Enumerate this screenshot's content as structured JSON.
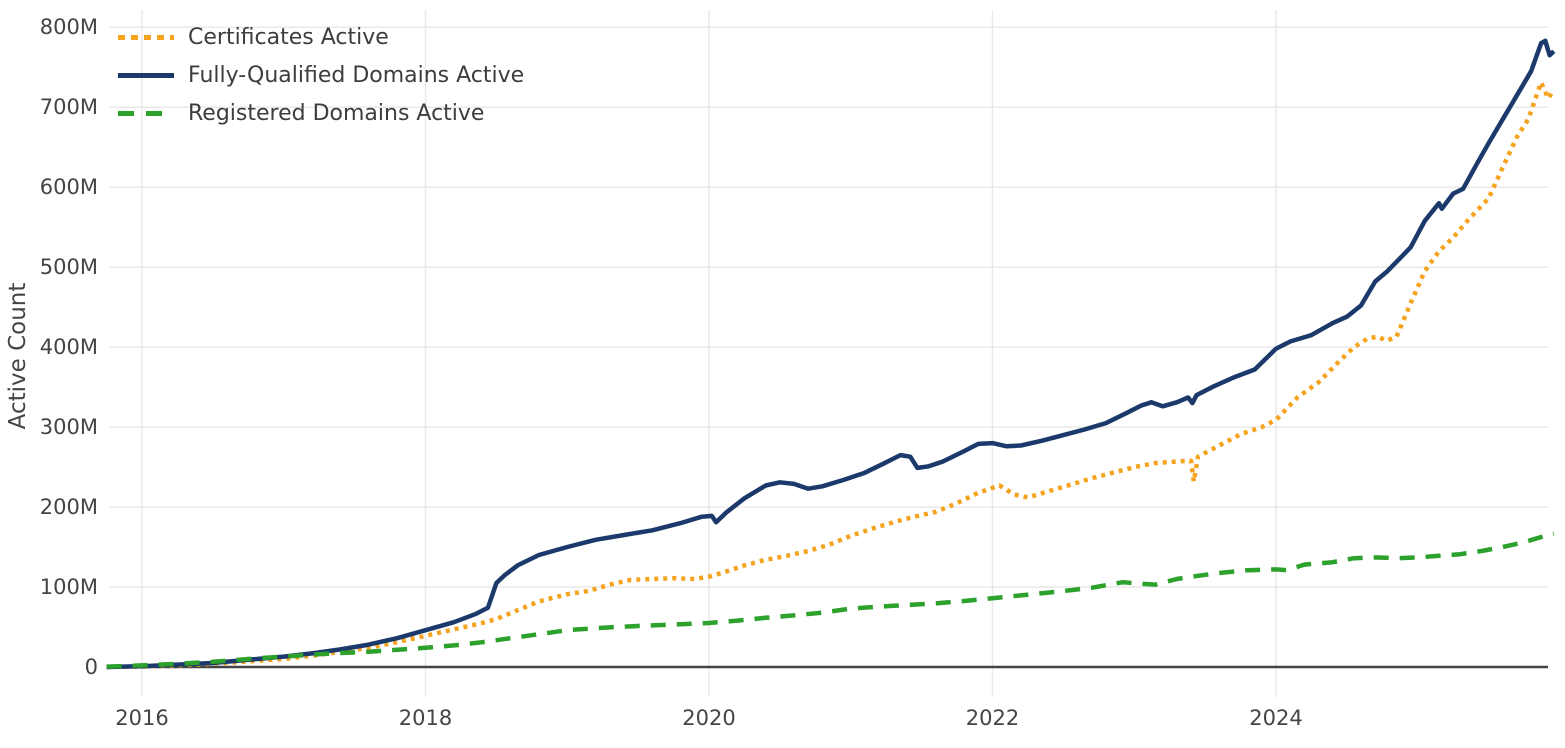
{
  "chart_data": {
    "type": "line",
    "title": "",
    "xlabel": "",
    "ylabel": "Active Count",
    "grid": true,
    "legend_position": "top-left",
    "xlim": [
      2015.7,
      2026.05
    ],
    "ylim": [
      0,
      830
    ],
    "x_ticks": [
      2016,
      2018,
      2020,
      2022,
      2024
    ],
    "x_tick_labels": [
      "2016",
      "2018",
      "2020",
      "2022",
      "2024"
    ],
    "y_ticks": [
      0,
      100,
      200,
      300,
      400,
      500,
      600,
      700,
      800
    ],
    "y_tick_labels": [
      "0",
      "100M",
      "200M",
      "300M",
      "400M",
      "500M",
      "600M",
      "700M",
      "800M"
    ],
    "y_unit": "millions",
    "colors": {
      "grid": "#e9e9e9",
      "axis": "#444444",
      "text": "#444444"
    },
    "series": [
      {
        "name": "Certificates Active",
        "color": "#f5a31f",
        "dash": "dotted",
        "points": [
          [
            2015.75,
            0
          ],
          [
            2016,
            0.5
          ],
          [
            2016.25,
            2
          ],
          [
            2016.5,
            4
          ],
          [
            2016.75,
            7
          ],
          [
            2017,
            10
          ],
          [
            2017.2,
            14
          ],
          [
            2017.4,
            19
          ],
          [
            2017.6,
            24
          ],
          [
            2017.8,
            31
          ],
          [
            2018,
            39
          ],
          [
            2018.2,
            47
          ],
          [
            2018.4,
            55
          ],
          [
            2018.5,
            60
          ],
          [
            2018.65,
            71
          ],
          [
            2018.8,
            82
          ],
          [
            2019,
            91
          ],
          [
            2019.15,
            95
          ],
          [
            2019.3,
            103
          ],
          [
            2019.45,
            109
          ],
          [
            2019.6,
            110
          ],
          [
            2019.75,
            111
          ],
          [
            2019.9,
            110
          ],
          [
            2020,
            113
          ],
          [
            2020.1,
            118
          ],
          [
            2020.25,
            127
          ],
          [
            2020.4,
            134
          ],
          [
            2020.55,
            139
          ],
          [
            2020.7,
            145
          ],
          [
            2020.85,
            153
          ],
          [
            2021,
            164
          ],
          [
            2021.15,
            173
          ],
          [
            2021.3,
            181
          ],
          [
            2021.45,
            188
          ],
          [
            2021.6,
            194
          ],
          [
            2021.75,
            205
          ],
          [
            2021.9,
            218
          ],
          [
            2022,
            224
          ],
          [
            2022.05,
            227
          ],
          [
            2022.15,
            216
          ],
          [
            2022.25,
            212
          ],
          [
            2022.4,
            220
          ],
          [
            2022.55,
            228
          ],
          [
            2022.7,
            236
          ],
          [
            2022.85,
            243
          ],
          [
            2023,
            250
          ],
          [
            2023.15,
            255
          ],
          [
            2023.3,
            257
          ],
          [
            2023.4,
            258
          ],
          [
            2023.42,
            232
          ],
          [
            2023.45,
            263
          ],
          [
            2023.6,
            277
          ],
          [
            2023.75,
            291
          ],
          [
            2023.9,
            300
          ],
          [
            2024,
            309
          ],
          [
            2024.15,
            337
          ],
          [
            2024.3,
            356
          ],
          [
            2024.45,
            383
          ],
          [
            2024.55,
            400
          ],
          [
            2024.65,
            411
          ],
          [
            2024.72,
            413
          ],
          [
            2024.78,
            408
          ],
          [
            2024.85,
            413
          ],
          [
            2024.95,
            455
          ],
          [
            2025.05,
            495
          ],
          [
            2025.15,
            520
          ],
          [
            2025.25,
            537
          ],
          [
            2025.35,
            558
          ],
          [
            2025.5,
            586
          ],
          [
            2025.6,
            625
          ],
          [
            2025.7,
            663
          ],
          [
            2025.78,
            685
          ],
          [
            2025.87,
            731
          ],
          [
            2025.92,
            711
          ],
          [
            2025.96,
            722
          ]
        ]
      },
      {
        "name": "Fully-Qualified Domains Active",
        "color": "#1b3a6b",
        "dash": "solid",
        "points": [
          [
            2015.75,
            0
          ],
          [
            2016,
            1
          ],
          [
            2016.25,
            3
          ],
          [
            2016.5,
            5
          ],
          [
            2016.75,
            9
          ],
          [
            2017,
            13
          ],
          [
            2017.2,
            17
          ],
          [
            2017.4,
            22
          ],
          [
            2017.6,
            28
          ],
          [
            2017.8,
            36
          ],
          [
            2018,
            46
          ],
          [
            2018.2,
            56
          ],
          [
            2018.35,
            66
          ],
          [
            2018.44,
            74
          ],
          [
            2018.5,
            105
          ],
          [
            2018.56,
            115
          ],
          [
            2018.65,
            127
          ],
          [
            2018.8,
            140
          ],
          [
            2019,
            150
          ],
          [
            2019.2,
            159
          ],
          [
            2019.4,
            165
          ],
          [
            2019.6,
            171
          ],
          [
            2019.8,
            180
          ],
          [
            2019.95,
            188
          ],
          [
            2020.02,
            189
          ],
          [
            2020.05,
            181
          ],
          [
            2020.12,
            193
          ],
          [
            2020.25,
            211
          ],
          [
            2020.4,
            227
          ],
          [
            2020.5,
            231
          ],
          [
            2020.6,
            229
          ],
          [
            2020.7,
            223
          ],
          [
            2020.8,
            226
          ],
          [
            2020.95,
            234
          ],
          [
            2021.1,
            243
          ],
          [
            2021.25,
            256
          ],
          [
            2021.35,
            265
          ],
          [
            2021.42,
            263
          ],
          [
            2021.47,
            249
          ],
          [
            2021.55,
            251
          ],
          [
            2021.65,
            257
          ],
          [
            2021.8,
            270
          ],
          [
            2021.9,
            279
          ],
          [
            2022,
            280
          ],
          [
            2022.1,
            276
          ],
          [
            2022.2,
            277
          ],
          [
            2022.35,
            283
          ],
          [
            2022.5,
            290
          ],
          [
            2022.65,
            297
          ],
          [
            2022.8,
            305
          ],
          [
            2022.95,
            318
          ],
          [
            2023.05,
            327
          ],
          [
            2023.12,
            331
          ],
          [
            2023.2,
            326
          ],
          [
            2023.3,
            331
          ],
          [
            2023.38,
            337
          ],
          [
            2023.41,
            330
          ],
          [
            2023.44,
            340
          ],
          [
            2023.55,
            350
          ],
          [
            2023.7,
            362
          ],
          [
            2023.85,
            372
          ],
          [
            2024,
            398
          ],
          [
            2024.1,
            407
          ],
          [
            2024.25,
            415
          ],
          [
            2024.4,
            430
          ],
          [
            2024.5,
            438
          ],
          [
            2024.6,
            452
          ],
          [
            2024.7,
            482
          ],
          [
            2024.78,
            494
          ],
          [
            2024.88,
            512
          ],
          [
            2024.95,
            525
          ],
          [
            2025.05,
            558
          ],
          [
            2025.15,
            580
          ],
          [
            2025.17,
            573
          ],
          [
            2025.25,
            592
          ],
          [
            2025.32,
            598
          ],
          [
            2025.42,
            630
          ],
          [
            2025.5,
            655
          ],
          [
            2025.6,
            685
          ],
          [
            2025.7,
            715
          ],
          [
            2025.8,
            745
          ],
          [
            2025.87,
            780
          ],
          [
            2025.9,
            783
          ],
          [
            2025.93,
            765
          ],
          [
            2025.96,
            770
          ]
        ]
      },
      {
        "name": "Registered Domains Active",
        "color": "#2ca12c",
        "dash": "dashed",
        "points": [
          [
            2015.75,
            0.5
          ],
          [
            2016,
            2
          ],
          [
            2016.25,
            4
          ],
          [
            2016.5,
            6.5
          ],
          [
            2016.75,
            10
          ],
          [
            2017,
            13
          ],
          [
            2017.2,
            15.5
          ],
          [
            2017.4,
            17.5
          ],
          [
            2017.6,
            19
          ],
          [
            2017.8,
            21.5
          ],
          [
            2018,
            24
          ],
          [
            2018.2,
            27
          ],
          [
            2018.4,
            31
          ],
          [
            2018.6,
            36
          ],
          [
            2018.8,
            41
          ],
          [
            2019,
            46
          ],
          [
            2019.2,
            48.5
          ],
          [
            2019.4,
            50.5
          ],
          [
            2019.6,
            52
          ],
          [
            2019.8,
            53.5
          ],
          [
            2020,
            55
          ],
          [
            2020.2,
            58
          ],
          [
            2020.4,
            61.5
          ],
          [
            2020.6,
            64.5
          ],
          [
            2020.8,
            68
          ],
          [
            2021,
            73
          ],
          [
            2021.2,
            75.5
          ],
          [
            2021.4,
            77.5
          ],
          [
            2021.6,
            79.5
          ],
          [
            2021.8,
            82.5
          ],
          [
            2022,
            86
          ],
          [
            2022.2,
            89.5
          ],
          [
            2022.45,
            94
          ],
          [
            2022.7,
            99
          ],
          [
            2022.92,
            106
          ],
          [
            2023.05,
            104
          ],
          [
            2023.15,
            103
          ],
          [
            2023.3,
            110
          ],
          [
            2023.45,
            114
          ],
          [
            2023.6,
            117.5
          ],
          [
            2023.8,
            121
          ],
          [
            2024,
            122
          ],
          [
            2024.08,
            121
          ],
          [
            2024.2,
            128
          ],
          [
            2024.4,
            131
          ],
          [
            2024.55,
            136
          ],
          [
            2024.7,
            137
          ],
          [
            2024.85,
            136
          ],
          [
            2025,
            137
          ],
          [
            2025.15,
            139
          ],
          [
            2025.3,
            141
          ],
          [
            2025.45,
            145
          ],
          [
            2025.6,
            150
          ],
          [
            2025.75,
            156
          ],
          [
            2025.88,
            163
          ],
          [
            2025.96,
            167
          ]
        ]
      }
    ]
  }
}
